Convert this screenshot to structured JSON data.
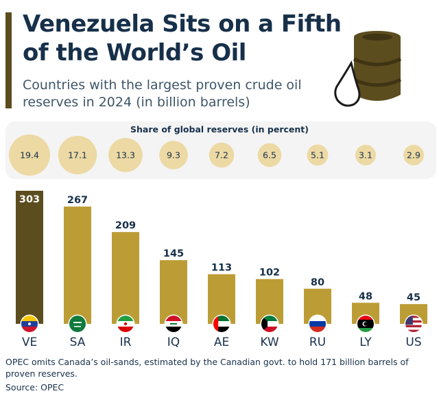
{
  "header": {
    "title": "Venezuela Sits on a Fifth of the World’s Oil",
    "subtitle": "Countries with the largest proven crude oil reserves in 2024 (in billion barrels)"
  },
  "share": {
    "title": "Share of global reserves (in percent)"
  },
  "chart_data": {
    "type": "bar",
    "categories": [
      "VE",
      "SA",
      "IR",
      "IQ",
      "AE",
      "KW",
      "RU",
      "LY",
      "US"
    ],
    "values": [
      303,
      267,
      209,
      145,
      113,
      102,
      80,
      48,
      45
    ],
    "share_percent": [
      "19.4",
      "17.1",
      "13.3",
      "9.3",
      "7.2",
      "6.5",
      "5.1",
      "3.1",
      "2.9"
    ],
    "flags": [
      "venezuela-flag",
      "saudi-arabia-flag",
      "iran-flag",
      "iraq-flag",
      "uae-flag",
      "kuwait-flag",
      "russia-flag",
      "libya-flag",
      "usa-flag"
    ],
    "ylim": [
      0,
      303
    ],
    "colors": {
      "highlight": "#5c4d1f",
      "bar": "#bc9d35",
      "bubble": "#ecd9a3",
      "title": "#17304a"
    }
  },
  "footer": {
    "note": "OPEC omits Canada’s oil-sands, estimated by the Canadian govt. to hold 171 billion barrels of proven reserves.",
    "source": "Source: OPEC"
  }
}
